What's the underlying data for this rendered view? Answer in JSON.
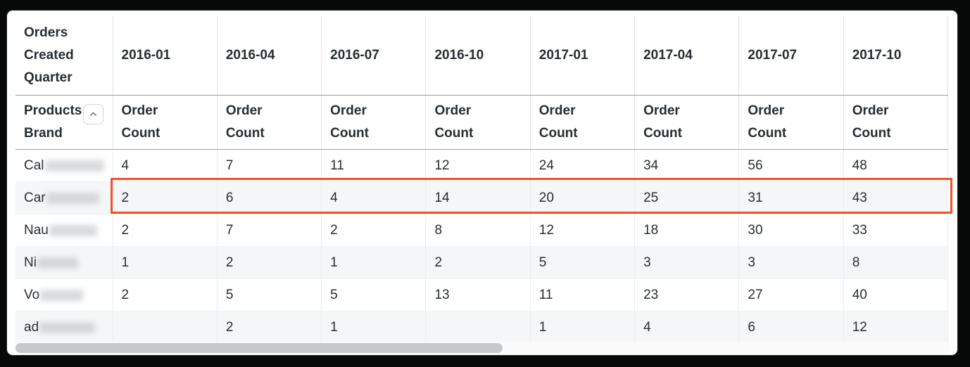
{
  "table": {
    "corner_header": "Orders Created Quarter",
    "row_dimension_label": "Products Brand",
    "measure_label": "Order Count",
    "quarters": [
      "2016-01",
      "2016-04",
      "2016-07",
      "2016-10",
      "2017-01",
      "2017-04",
      "2017-07",
      "2017-10"
    ],
    "rows": [
      {
        "brand_prefix": "Cal",
        "brand_blurred": true,
        "blur_width": 93,
        "values": [
          "4",
          "7",
          "11",
          "12",
          "24",
          "34",
          "56",
          "48"
        ],
        "highlighted": false
      },
      {
        "brand_prefix": "Car",
        "brand_blurred": true,
        "blur_width": 75,
        "values": [
          "2",
          "6",
          "4",
          "14",
          "20",
          "25",
          "31",
          "43"
        ],
        "highlighted": true
      },
      {
        "brand_prefix": "Nau",
        "brand_blurred": true,
        "blur_width": 68,
        "values": [
          "2",
          "7",
          "2",
          "8",
          "12",
          "18",
          "30",
          "33"
        ],
        "highlighted": false
      },
      {
        "brand_prefix": "Ni",
        "brand_blurred": true,
        "blur_width": 58,
        "values": [
          "1",
          "2",
          "1",
          "2",
          "5",
          "3",
          "3",
          "8"
        ],
        "highlighted": false
      },
      {
        "brand_prefix": "Vo",
        "brand_blurred": true,
        "blur_width": 61,
        "values": [
          "2",
          "5",
          "5",
          "13",
          "11",
          "23",
          "27",
          "40"
        ],
        "highlighted": false
      },
      {
        "brand_prefix": "ad",
        "brand_blurred": true,
        "blur_width": 79,
        "values": [
          "",
          "2",
          "1",
          "",
          "1",
          "4",
          "6",
          "12"
        ],
        "highlighted": false
      }
    ]
  },
  "icons": {
    "collapse": "chevron-up-icon"
  },
  "colors": {
    "highlight_border": "#f4502a",
    "header_text": "#262d33",
    "row_stripe": "#f5f6f7",
    "header_separator": "#999fa4"
  },
  "scrollbar": {
    "orientation": "horizontal",
    "thumb_width_pct": 52,
    "thumb_position_pct": 0
  }
}
